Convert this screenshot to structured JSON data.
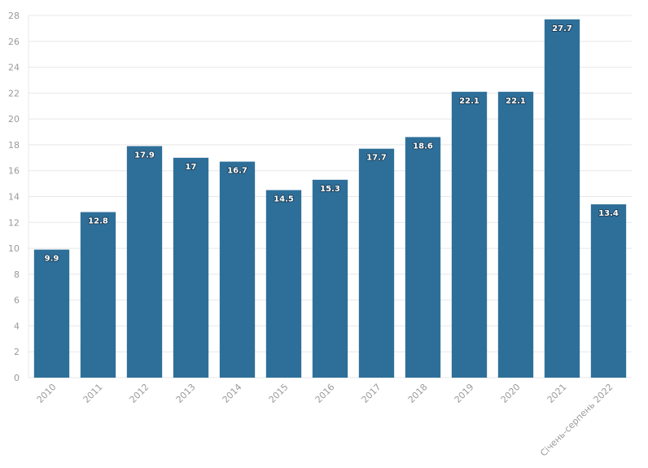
{
  "chart_data": {
    "type": "bar",
    "categories": [
      "2010",
      "2011",
      "2012",
      "2013",
      "2014",
      "2015",
      "2016",
      "2017",
      "2018",
      "2019",
      "2020",
      "2021",
      "Січень-серпень 2022"
    ],
    "values": [
      9.9,
      12.8,
      17.9,
      17,
      16.7,
      14.5,
      15.3,
      17.7,
      18.6,
      22.1,
      22.1,
      27.7,
      13.4
    ],
    "data_labels": [
      "9.9",
      "12.8",
      "17.9",
      "17",
      "16.7",
      "14.5",
      "15.3",
      "17.7",
      "18.6",
      "22.1",
      "22.1",
      "27.7",
      "13.4"
    ],
    "y_ticks": [
      "0",
      "2",
      "4",
      "6",
      "8",
      "10",
      "12",
      "14",
      "16",
      "18",
      "20",
      "22",
      "24",
      "26",
      "28"
    ],
    "ylim": [
      0,
      28
    ],
    "grid": true,
    "legend": "none",
    "colors": {
      "bar": "#2e6f99",
      "grid": "#e8e8e8",
      "tick_text": "#9a9a9a",
      "label_text": "#ffffff"
    }
  }
}
